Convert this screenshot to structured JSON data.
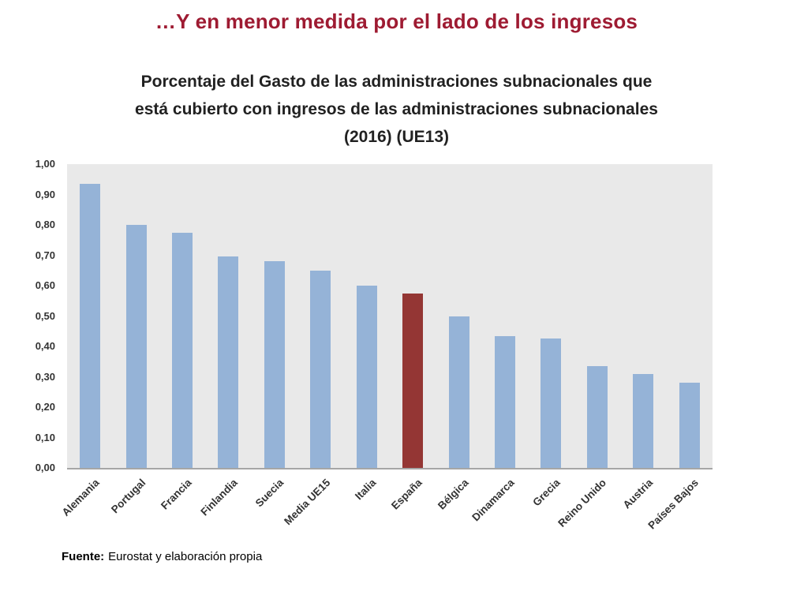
{
  "header": {
    "main_title": "…Y en menor medida por el lado de los ingresos"
  },
  "chart_title": {
    "line1": "Porcentaje del Gasto de las administraciones subnacionales que",
    "line2": "está cubierto con ingresos de las administraciones subnacionales",
    "line3": "(2016) (UE13)"
  },
  "footer": {
    "source_label": "Fuente:",
    "source_text": "Eurostat y elaboración propia"
  },
  "chart_data": {
    "type": "bar",
    "title": "Porcentaje del Gasto de las administraciones subnacionales que está cubierto con ingresos de las administraciones subnacionales (2016) (UE13)",
    "categories": [
      "Alemania",
      "Portugal",
      "Francia",
      "Finlandia",
      "Suecia",
      "Media UE15",
      "Italia",
      "España",
      "Bélgica",
      "Dinamarca",
      "Grecia",
      "Reino Unido",
      "Austria",
      "Países Bajos"
    ],
    "values": [
      0.935,
      0.8,
      0.775,
      0.695,
      0.68,
      0.65,
      0.6,
      0.575,
      0.5,
      0.435,
      0.425,
      0.335,
      0.31,
      0.28
    ],
    "highlight_category": "España",
    "bar_color": "#95B3D7",
    "highlight_color": "#943634",
    "plot_background": "#E9E9E9",
    "xlabel": "",
    "ylabel": "",
    "ylim": [
      0,
      1.0
    ],
    "ytick_step": 0.1,
    "ytick_labels": [
      "0,00",
      "0,10",
      "0,20",
      "0,30",
      "0,40",
      "0,50",
      "0,60",
      "0,70",
      "0,80",
      "0,90",
      "1,00"
    ],
    "grid": false,
    "legend": "none"
  }
}
